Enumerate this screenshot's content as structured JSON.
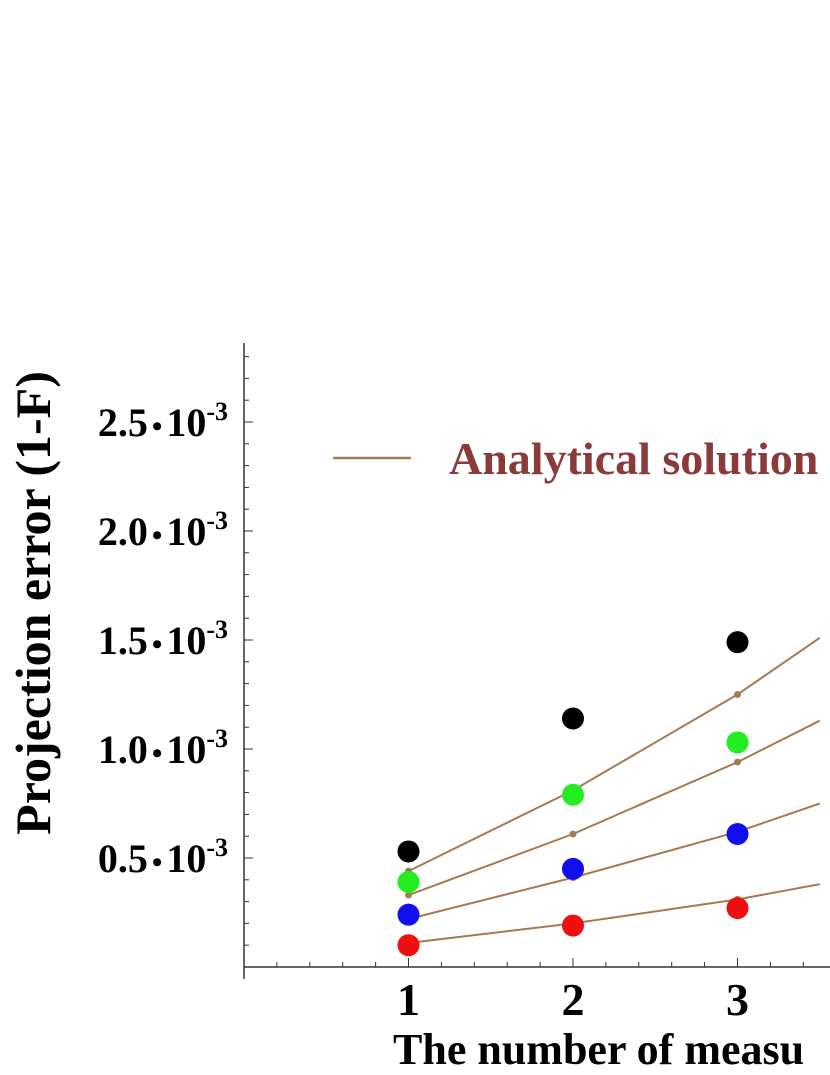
{
  "chart_data": {
    "type": "scatter",
    "xlabel": "The number of measu",
    "ylabel": "Projection error (1-F)",
    "xlim": [
      0,
      3.5
    ],
    "ylim": [
      0,
      0.00282
    ],
    "x_ticks": [
      {
        "value": 1,
        "label": "1"
      },
      {
        "value": 2,
        "label": "2"
      },
      {
        "value": 3,
        "label": "3"
      }
    ],
    "y_ticks": [
      {
        "value": 0.0005,
        "mantissa": "0.5",
        "base": "10",
        "exp": "-3"
      },
      {
        "value": 0.001,
        "mantissa": "1.0",
        "base": "10",
        "exp": "-3"
      },
      {
        "value": 0.0015,
        "mantissa": "1.5",
        "base": "10",
        "exp": "-3"
      },
      {
        "value": 0.002,
        "mantissa": "2.0",
        "base": "10",
        "exp": "-3"
      },
      {
        "value": 0.0025,
        "mantissa": "2.5",
        "base": "10",
        "exp": "-3"
      }
    ],
    "legend": {
      "label": "Analytical solution",
      "placement": "top-left",
      "line_color": "#a57a52",
      "text_color": "#8b3a3a"
    },
    "series": [
      {
        "color": "#000000",
        "points": [
          [
            1,
            0.00053
          ],
          [
            2,
            0.00114
          ],
          [
            3,
            0.00149
          ]
        ]
      },
      {
        "color": "#22ee22",
        "points": [
          [
            1,
            0.00039
          ],
          [
            2,
            0.00079
          ],
          [
            3,
            0.00103
          ]
        ]
      },
      {
        "color": "#1010ee",
        "points": [
          [
            1,
            0.00024
          ],
          [
            2,
            0.00045
          ],
          [
            3,
            0.00061
          ]
        ]
      },
      {
        "color": "#ee1010",
        "points": [
          [
            1,
            0.0001
          ],
          [
            2,
            0.00019
          ],
          [
            3,
            0.00027
          ]
        ]
      }
    ],
    "analytical_lines": [
      {
        "color": "#a57a52",
        "points": [
          [
            1,
            0.00044
          ],
          [
            2,
            0.00081
          ],
          [
            3,
            0.00125
          ],
          [
            3.5,
            0.00151
          ]
        ]
      },
      {
        "color": "#a57a52",
        "points": [
          [
            1,
            0.00033
          ],
          [
            2,
            0.00061
          ],
          [
            3,
            0.00094
          ],
          [
            3.5,
            0.00113
          ]
        ]
      },
      {
        "color": "#a57a52",
        "points": [
          [
            1,
            0.00022
          ],
          [
            2,
            0.00041
          ],
          [
            3,
            0.00062
          ],
          [
            3.5,
            0.00075
          ]
        ]
      },
      {
        "color": "#a57a52",
        "points": [
          [
            1,
            0.00011
          ],
          [
            2,
            0.0002
          ],
          [
            3,
            0.00031
          ],
          [
            3.5,
            0.00038
          ]
        ]
      }
    ]
  }
}
